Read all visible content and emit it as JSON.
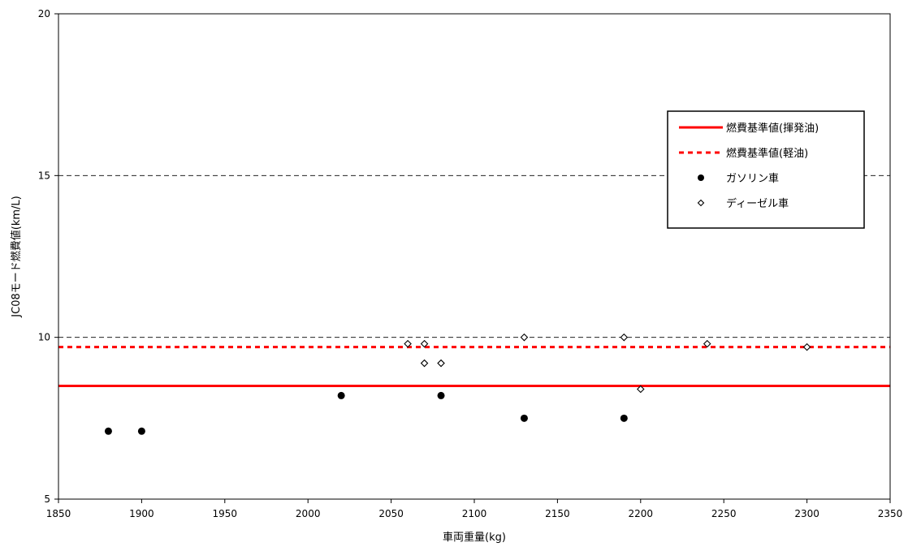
{
  "chart_data": {
    "type": "scatter",
    "xlabel": "車両重量(kg)",
    "ylabel": "JC08モード燃費値(km/L)",
    "xlim": [
      1850,
      2350
    ],
    "ylim": [
      5,
      20
    ],
    "x_ticks": [
      1850,
      1900,
      1950,
      2000,
      2050,
      2100,
      2150,
      2200,
      2250,
      2300,
      2350
    ],
    "y_ticks": [
      5,
      10,
      15,
      20
    ],
    "gridlines_y": [
      10,
      15
    ],
    "legend_position": "right",
    "reference_lines": [
      {
        "name": "燃費基準値(揮発油)",
        "y": 8.5,
        "style": "solid",
        "color": "#ff0000"
      },
      {
        "name": "燃費基準値(軽油)",
        "y": 9.7,
        "style": "dotted",
        "color": "#ff0000"
      }
    ],
    "series": [
      {
        "name": "ガソリン車",
        "marker": "filled-circle",
        "color": "#000000",
        "points": [
          {
            "x": 1880,
            "y": 7.1
          },
          {
            "x": 1900,
            "y": 7.1
          },
          {
            "x": 2020,
            "y": 8.2
          },
          {
            "x": 2080,
            "y": 8.2
          },
          {
            "x": 2130,
            "y": 7.5
          },
          {
            "x": 2190,
            "y": 7.5
          }
        ]
      },
      {
        "name": "ディーゼル車",
        "marker": "open-diamond",
        "color": "#000000",
        "points": [
          {
            "x": 2060,
            "y": 9.8
          },
          {
            "x": 2070,
            "y": 9.8
          },
          {
            "x": 2070,
            "y": 9.2
          },
          {
            "x": 2080,
            "y": 9.2
          },
          {
            "x": 2130,
            "y": 10.0
          },
          {
            "x": 2190,
            "y": 10.0
          },
          {
            "x": 2200,
            "y": 8.4
          },
          {
            "x": 2240,
            "y": 9.8
          },
          {
            "x": 2300,
            "y": 9.7
          }
        ]
      }
    ]
  }
}
